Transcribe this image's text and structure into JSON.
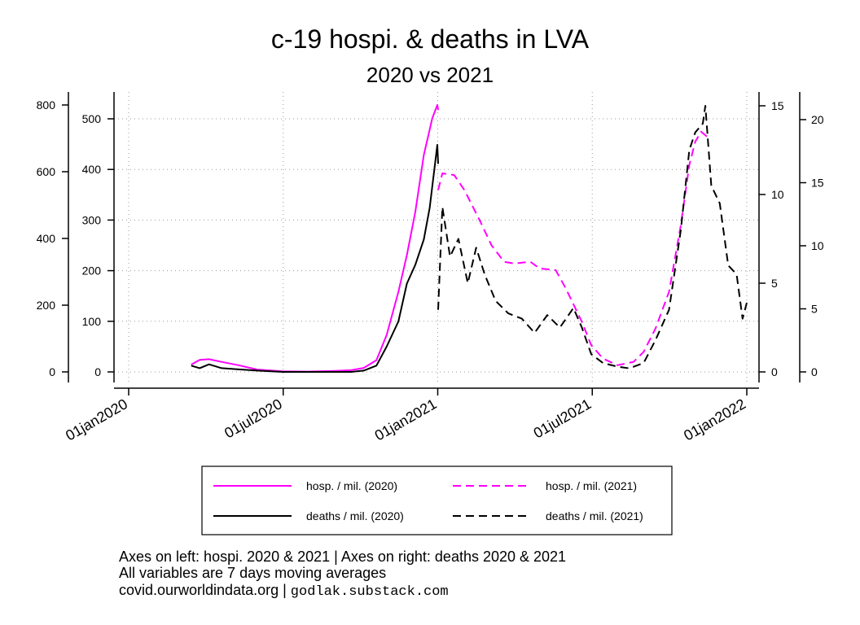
{
  "chart_data": {
    "type": "line",
    "title": "c-19 hospi. & deaths in LVA",
    "subtitle": "2020 vs 2021",
    "x_axis": {
      "ticks": [
        "01jan2020",
        "01jul2020",
        "01jan2021",
        "01jul2021",
        "01jan2022"
      ],
      "range": [
        "2020-01-01",
        "2022-01-01"
      ]
    },
    "y_axes": {
      "left_outer": {
        "ticks": [
          "0",
          "200",
          "400",
          "600",
          "800"
        ],
        "range": [
          0,
          800
        ]
      },
      "left_inner": {
        "ticks": [
          "0",
          "100",
          "200",
          "300",
          "400",
          "500"
        ],
        "range": [
          0,
          500
        ]
      },
      "right_inner": {
        "ticks": [
          "0",
          "5",
          "10",
          "15"
        ],
        "range": [
          0,
          15
        ]
      },
      "right_outer": {
        "ticks": [
          "0",
          "5",
          "10",
          "15",
          "20"
        ],
        "range": [
          0,
          21
        ]
      }
    },
    "grid": true,
    "legend_position": "bottom",
    "series": [
      {
        "name": "hosp. / mil. (2020)",
        "axis": "left_outer",
        "color": "#ff00ff",
        "dash": "solid",
        "points": [
          [
            "2020-03-15",
            22
          ],
          [
            "2020-03-25",
            36
          ],
          [
            "2020-04-05",
            38
          ],
          [
            "2020-04-20",
            30
          ],
          [
            "2020-05-10",
            20
          ],
          [
            "2020-06-01",
            7
          ],
          [
            "2020-07-01",
            2
          ],
          [
            "2020-08-01",
            1
          ],
          [
            "2020-09-01",
            3
          ],
          [
            "2020-09-20",
            5
          ],
          [
            "2020-10-05",
            12
          ],
          [
            "2020-10-20",
            35
          ],
          [
            "2020-11-01",
            110
          ],
          [
            "2020-11-15",
            240
          ],
          [
            "2020-11-25",
            350
          ],
          [
            "2020-12-05",
            480
          ],
          [
            "2020-12-15",
            650
          ],
          [
            "2020-12-25",
            760
          ],
          [
            "2020-12-31",
            800
          ],
          [
            "2021-01-01",
            785
          ]
        ]
      },
      {
        "name": "hosp. / mil. (2021)",
        "axis": "left_outer",
        "color": "#ff00ff",
        "dash": "dashed",
        "points": [
          [
            "2021-01-01",
            545
          ],
          [
            "2021-01-06",
            595
          ],
          [
            "2021-01-20",
            590
          ],
          [
            "2021-02-01",
            545
          ],
          [
            "2021-02-20",
            450
          ],
          [
            "2021-03-05",
            380
          ],
          [
            "2021-03-20",
            330
          ],
          [
            "2021-04-01",
            325
          ],
          [
            "2021-04-20",
            330
          ],
          [
            "2021-05-01",
            310
          ],
          [
            "2021-05-20",
            305
          ],
          [
            "2021-06-01",
            250
          ],
          [
            "2021-06-20",
            150
          ],
          [
            "2021-07-01",
            80
          ],
          [
            "2021-07-15",
            40
          ],
          [
            "2021-08-01",
            20
          ],
          [
            "2021-08-20",
            30
          ],
          [
            "2021-09-01",
            60
          ],
          [
            "2021-09-15",
            130
          ],
          [
            "2021-10-01",
            240
          ],
          [
            "2021-10-15",
            440
          ],
          [
            "2021-10-25",
            620
          ],
          [
            "2021-11-01",
            690
          ],
          [
            "2021-11-08",
            720
          ],
          [
            "2021-11-15",
            705
          ]
        ]
      },
      {
        "name": "deaths / mil. (2020)",
        "axis": "right_outer",
        "color": "#000000",
        "dash": "solid",
        "points": [
          [
            "2020-03-15",
            0.5
          ],
          [
            "2020-03-25",
            0.3
          ],
          [
            "2020-04-05",
            0.6
          ],
          [
            "2020-04-20",
            0.3
          ],
          [
            "2020-05-10",
            0.2
          ],
          [
            "2020-06-01",
            0.1
          ],
          [
            "2020-07-01",
            0.0
          ],
          [
            "2020-08-01",
            0.0
          ],
          [
            "2020-09-01",
            0.0
          ],
          [
            "2020-09-20",
            0.0
          ],
          [
            "2020-10-05",
            0.1
          ],
          [
            "2020-10-20",
            0.5
          ],
          [
            "2020-11-01",
            2.0
          ],
          [
            "2020-11-15",
            4.0
          ],
          [
            "2020-11-25",
            7.0
          ],
          [
            "2020-12-05",
            8.5
          ],
          [
            "2020-12-15",
            10.5
          ],
          [
            "2020-12-22",
            13.0
          ],
          [
            "2020-12-31",
            18.0
          ],
          [
            "2021-01-01",
            16.5
          ]
        ]
      },
      {
        "name": "deaths / mil. (2021)",
        "axis": "right_inner",
        "color": "#000000",
        "dash": "dashed",
        "points": [
          [
            "2021-01-01",
            3.5
          ],
          [
            "2021-01-06",
            9.3
          ],
          [
            "2021-01-15",
            6.5
          ],
          [
            "2021-01-25",
            7.5
          ],
          [
            "2021-02-05",
            5.0
          ],
          [
            "2021-02-15",
            7.0
          ],
          [
            "2021-02-25",
            5.5
          ],
          [
            "2021-03-10",
            4.0
          ],
          [
            "2021-03-25",
            3.3
          ],
          [
            "2021-04-10",
            3.0
          ],
          [
            "2021-04-25",
            2.2
          ],
          [
            "2021-05-10",
            3.2
          ],
          [
            "2021-05-25",
            2.5
          ],
          [
            "2021-06-10",
            3.6
          ],
          [
            "2021-06-20",
            2.5
          ],
          [
            "2021-07-01",
            1.0
          ],
          [
            "2021-07-15",
            0.5
          ],
          [
            "2021-08-01",
            0.3
          ],
          [
            "2021-08-15",
            0.2
          ],
          [
            "2021-09-01",
            0.5
          ],
          [
            "2021-09-15",
            1.8
          ],
          [
            "2021-10-01",
            3.5
          ],
          [
            "2021-10-15",
            8.0
          ],
          [
            "2021-10-25",
            12.5
          ],
          [
            "2021-11-01",
            13.5
          ],
          [
            "2021-11-10",
            14.0
          ],
          [
            "2021-11-13",
            15.0
          ],
          [
            "2021-11-20",
            10.5
          ],
          [
            "2021-11-30",
            9.5
          ],
          [
            "2021-12-10",
            6.0
          ],
          [
            "2021-12-20",
            5.5
          ],
          [
            "2021-12-27",
            3.0
          ],
          [
            "2022-01-01",
            3.9
          ]
        ]
      }
    ]
  },
  "notes": {
    "line1": "Axes on left: hospi. 2020 & 2021 | Axes on right: deaths 2020 & 2021",
    "line2": "All variables are 7 days moving averages",
    "line3": "covid.ourworldindata.org | ",
    "line3_site": "godlak.substack.com"
  }
}
